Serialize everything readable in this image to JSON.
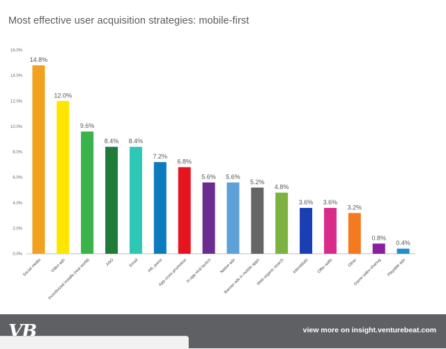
{
  "chart_data": {
    "type": "bar",
    "title": "Most effective user acquisition strategies: mobile-first",
    "xlabel": "",
    "ylabel": "",
    "ylim": [
      0,
      16
    ],
    "y_ticks": [
      "0.0%",
      "2.0%",
      "4.0%",
      "6.0%",
      "8.0%",
      "10.0%",
      "12.0%",
      "14.0%",
      "16.0%"
    ],
    "grid": false,
    "legend": "none",
    "categories": [
      "Social media",
      "Video ads",
      "Incentivized installs (real world)",
      "ASO",
      "Email",
      "PR, press",
      "App cross-promotion",
      "In app viral tactics",
      "Native ads",
      "Banner ads in mobile apps",
      "Web organic search",
      "Interstitials",
      "Offer walls",
      "Other",
      "Game video sharing",
      "Playable ads"
    ],
    "values": [
      14.8,
      12.0,
      9.6,
      8.4,
      8.4,
      7.2,
      6.8,
      5.6,
      5.6,
      5.2,
      4.8,
      3.6,
      3.6,
      3.2,
      0.8,
      0.4
    ],
    "value_labels": [
      "14.8%",
      "12.0%",
      "9.6%",
      "8.4%",
      "8.4%",
      "7.2%",
      "6.8%",
      "5.6%",
      "5.6%",
      "5.2%",
      "4.8%",
      "3.6%",
      "3.6%",
      "3.2%",
      "0.8%",
      "0.4%"
    ],
    "colors": [
      "#f0a21f",
      "#fde500",
      "#39b34a",
      "#1f7b3a",
      "#2ec7b5",
      "#0b7bbd",
      "#e5141f",
      "#6b2c8f",
      "#5ea0d8",
      "#656565",
      "#7cb240",
      "#1a3eb3",
      "#d92c8a",
      "#f47a1f",
      "#8b1fa0",
      "#1d8fc9"
    ]
  },
  "footer": {
    "logo": "VB",
    "link": "view more on insight.venturebeat.com"
  }
}
